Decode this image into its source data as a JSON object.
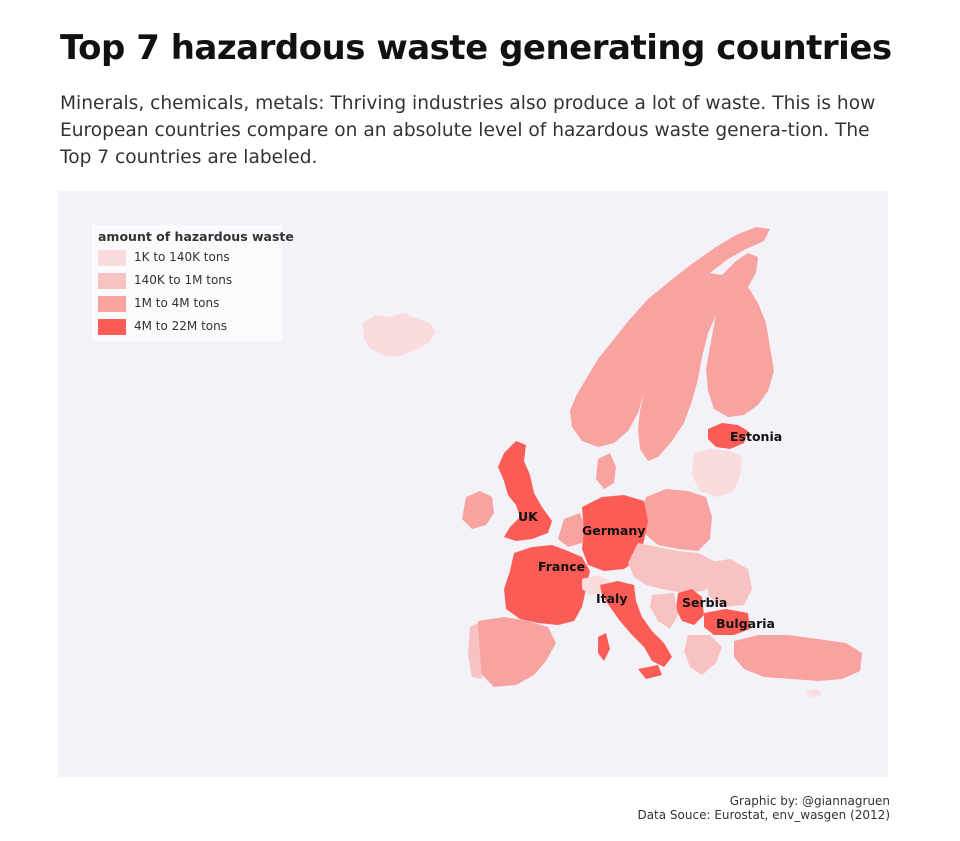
{
  "title": "Top 7 hazardous waste generating countries",
  "subtitle": "Minerals, chemicals, metals: Thriving industries also produce a lot of waste. This is how European countries compare on an absolute level of hazardous waste genera-tion. The Top 7 countries are labeled.",
  "map": {
    "background_color": "#f2f2f8",
    "legend": {
      "title": "amount of hazardous waste",
      "items": [
        {
          "label": "1K to 140K  tons",
          "color": "#fadcdc"
        },
        {
          "label": "140K to 1M  tons",
          "color": "#f9c2c2"
        },
        {
          "label": "1M to 4M  tons",
          "color": "#f8a3a0"
        },
        {
          "label": "4M to 22M  tons",
          "color": "#fb5c55"
        }
      ]
    },
    "labeled_countries": [
      "Estonia",
      "UK",
      "Germany",
      "France",
      "Serbia",
      "Italy",
      "Bulgaria"
    ]
  },
  "credits": {
    "line1": "Graphic by: @giannagruen",
    "line2": "Data Souce: Eurostat, env_wasgen (2012)"
  }
}
